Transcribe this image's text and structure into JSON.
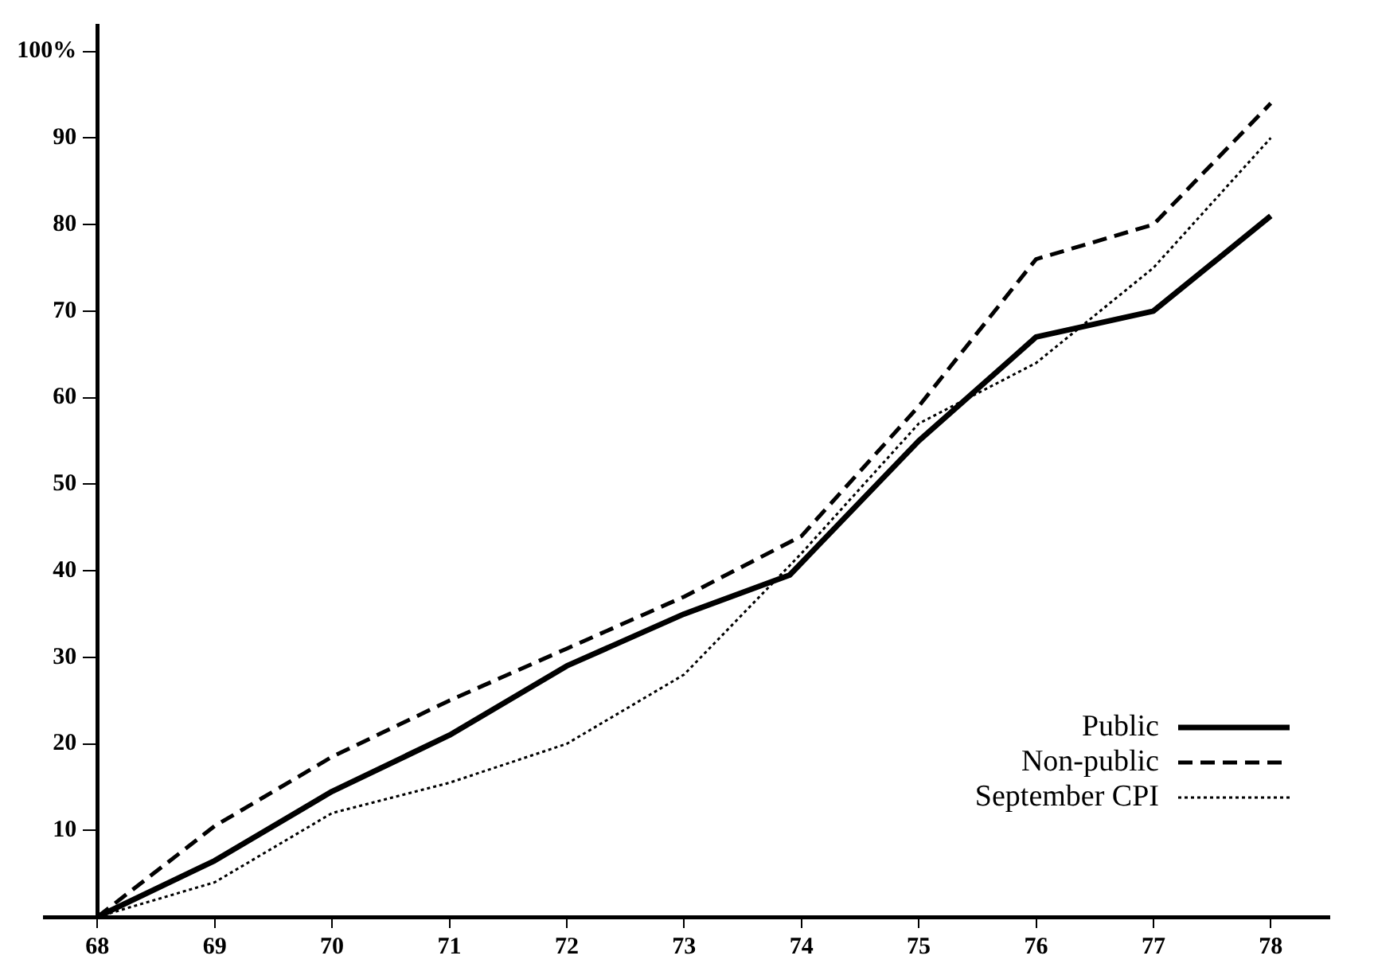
{
  "chart_data": {
    "type": "line",
    "xlim": [
      67.55,
      78.5
    ],
    "xticks": [
      68,
      69,
      70,
      71,
      72,
      73,
      74,
      75,
      76,
      77,
      78
    ],
    "ylim": [
      0,
      103
    ],
    "yticks": [
      10,
      20,
      30,
      40,
      50,
      60,
      70,
      80,
      90,
      {
        "value": 100,
        "label": "100%"
      }
    ],
    "grid": false,
    "legend": "bottom right",
    "marker": "none",
    "series": [
      {
        "name": "Public",
        "color": "#000000",
        "line_style": "solid",
        "x": [
          68,
          69,
          70,
          71,
          72,
          73,
          73.9,
          75,
          76,
          77,
          78
        ],
        "values": [
          0,
          6.5,
          14.5,
          21,
          29,
          35,
          39.5,
          55,
          67,
          70,
          81
        ]
      },
      {
        "name": "Non-public",
        "color": "#000000",
        "line_style": "dashed",
        "x": [
          68,
          69,
          70,
          71,
          72,
          73,
          74,
          75,
          76,
          77,
          78
        ],
        "values": [
          0,
          10.5,
          18.5,
          25,
          31,
          37,
          44,
          59,
          76,
          80,
          94
        ]
      },
      {
        "name": "September CPI",
        "color": "#000000",
        "line_style": "dotted",
        "x": [
          68,
          69,
          70,
          71,
          72,
          73,
          74,
          75,
          76,
          77,
          78
        ],
        "values": [
          0,
          4,
          12,
          15.5,
          20,
          28,
          42,
          57,
          64,
          75,
          90
        ]
      }
    ]
  }
}
